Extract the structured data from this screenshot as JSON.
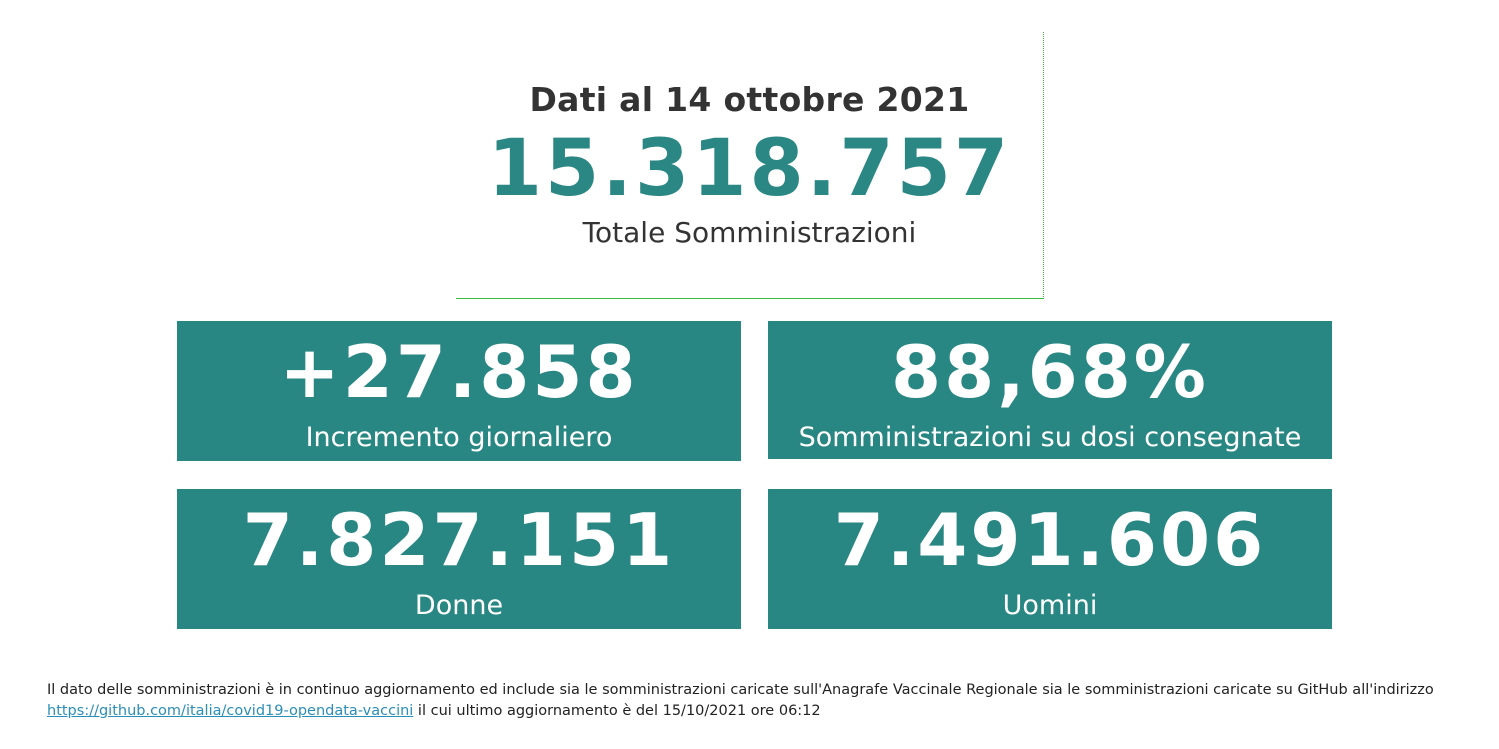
{
  "header": {
    "date_line": "Dati al 14 ottobre 2021",
    "total_value": "15.318.757",
    "total_label": "Totale Somministrazioni"
  },
  "cards": [
    {
      "value": "+27.858",
      "label": "Incremento giornaliero"
    },
    {
      "value": "88,68%",
      "label": "Somministrazioni su dosi consegnate"
    },
    {
      "value": "7.827.151",
      "label": "Donne"
    },
    {
      "value": "7.491.606",
      "label": "Uomini"
    }
  ],
  "footnote": {
    "text_before": "Il dato delle somministrazioni è in continuo aggiornamento ed include sia le somministrazioni caricate sull'Anagrafe Vaccinale Regionale sia le somministrazioni caricate su GitHub all'indirizzo ",
    "link_text": "https://github.com/italia/covid19-opendata-vaccini",
    "text_after": " il cui ultimo aggiornamento è del 15/10/2021 ore 06:12"
  },
  "colors": {
    "accent": "#288783",
    "divider": "#3bbd3b",
    "link": "#2a8eb8"
  }
}
